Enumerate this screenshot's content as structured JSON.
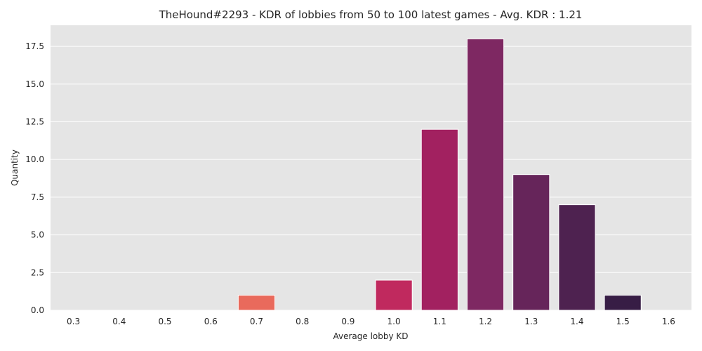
{
  "chart_data": {
    "type": "bar",
    "title": "TheHound#2293 - KDR of lobbies from 50 to 100 latest games - Avg. KDR : 1.21",
    "xlabel": "Average lobby KD",
    "ylabel": "Quantity",
    "categories": [
      "0.3",
      "0.4",
      "0.5",
      "0.6",
      "0.7",
      "0.8",
      "0.9",
      "1.0",
      "1.1",
      "1.2",
      "1.3",
      "1.4",
      "1.5",
      "1.6"
    ],
    "values": [
      0,
      0,
      0,
      0,
      1,
      0,
      0,
      2,
      12,
      18,
      9,
      7,
      1,
      0
    ],
    "ylim": [
      0,
      18.9
    ],
    "yticks": [
      0.0,
      2.5,
      5.0,
      7.5,
      10.0,
      12.5,
      15.0,
      17.5
    ],
    "ytick_labels": [
      "0.0",
      "2.5",
      "5.0",
      "7.5",
      "10.0",
      "12.5",
      "15.0",
      "17.5"
    ],
    "grid": true,
    "bar_colors": [
      "#f6b48f",
      "#f5a27c",
      "#f3906a",
      "#f07c5c",
      "#e96a5c",
      "#e25256",
      "#d33f5a",
      "#c0295e",
      "#a22160",
      "#7e2862",
      "#66255a",
      "#4e2250",
      "#371d45",
      "#24162e"
    ],
    "background": "#e5e5e5"
  }
}
